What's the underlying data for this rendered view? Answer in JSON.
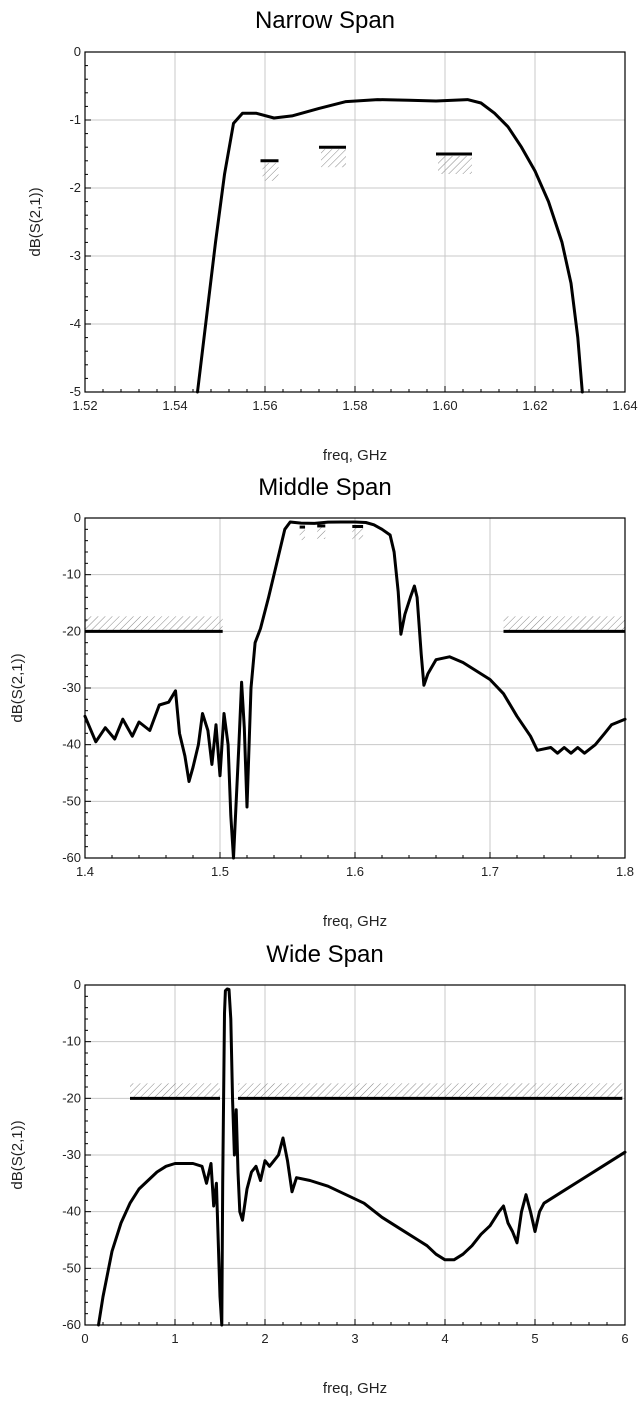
{
  "chart_data": [
    {
      "type": "line",
      "title": "Narrow Span",
      "xlabel": "freq, GHz",
      "ylabel": "dB(S(2,1))",
      "xlim": [
        1.52,
        1.64
      ],
      "ylim": [
        -5,
        0
      ],
      "xticks": [
        1.52,
        1.54,
        1.56,
        1.58,
        1.6,
        1.62,
        1.64
      ],
      "xtick_labels": [
        "1.52",
        "1.54",
        "1.56",
        "1.58",
        "1.60",
        "1.62",
        "1.64"
      ],
      "yticks": [
        0,
        -1,
        -2,
        -3,
        -4,
        -5
      ],
      "ytick_labels": [
        "0",
        "-1",
        "-2",
        "-3",
        "-4",
        "-5"
      ],
      "grid": true,
      "series": [
        {
          "points": [
            [
              1.545,
              -5.0
            ],
            [
              1.547,
              -3.9
            ],
            [
              1.549,
              -2.8
            ],
            [
              1.551,
              -1.8
            ],
            [
              1.553,
              -1.05
            ],
            [
              1.555,
              -0.9
            ],
            [
              1.558,
              -0.9
            ],
            [
              1.562,
              -0.97
            ],
            [
              1.566,
              -0.94
            ],
            [
              1.572,
              -0.83
            ],
            [
              1.578,
              -0.73
            ],
            [
              1.585,
              -0.7
            ],
            [
              1.592,
              -0.71
            ],
            [
              1.598,
              -0.72
            ],
            [
              1.605,
              -0.7
            ],
            [
              1.608,
              -0.75
            ],
            [
              1.611,
              -0.9
            ],
            [
              1.614,
              -1.1
            ],
            [
              1.617,
              -1.4
            ],
            [
              1.62,
              -1.75
            ],
            [
              1.623,
              -2.2
            ],
            [
              1.626,
              -2.8
            ],
            [
              1.628,
              -3.4
            ],
            [
              1.6295,
              -4.2
            ],
            [
              1.6305,
              -5.0
            ]
          ]
        }
      ],
      "mask_lines": [
        {
          "x": [
            1.559,
            1.563
          ],
          "y": -1.6
        },
        {
          "x": [
            1.572,
            1.578
          ],
          "y": -1.4
        },
        {
          "x": [
            1.598,
            1.606
          ],
          "y": -1.5
        }
      ]
    },
    {
      "type": "line",
      "title": "Middle Span",
      "xlabel": "freq, GHz",
      "ylabel": "dB(S(2,1))",
      "xlim": [
        1.4,
        1.8
      ],
      "ylim": [
        -60,
        0
      ],
      "xticks": [
        1.4,
        1.5,
        1.6,
        1.7,
        1.8
      ],
      "xtick_labels": [
        "1.4",
        "1.5",
        "1.6",
        "1.7",
        "1.8"
      ],
      "yticks": [
        0,
        -10,
        -20,
        -30,
        -40,
        -50,
        -60
      ],
      "ytick_labels": [
        "0",
        "-10",
        "-20",
        "-30",
        "-40",
        "-50",
        "-60"
      ],
      "grid": true,
      "series": [
        {
          "points": [
            [
              1.4,
              -35.0
            ],
            [
              1.408,
              -39.5
            ],
            [
              1.415,
              -37.0
            ],
            [
              1.422,
              -39.0
            ],
            [
              1.428,
              -35.5
            ],
            [
              1.435,
              -38.5
            ],
            [
              1.44,
              -36.0
            ],
            [
              1.448,
              -37.5
            ],
            [
              1.455,
              -33.0
            ],
            [
              1.462,
              -32.5
            ],
            [
              1.467,
              -30.5
            ],
            [
              1.47,
              -38.0
            ],
            [
              1.474,
              -42.0
            ],
            [
              1.477,
              -46.5
            ],
            [
              1.48,
              -44.0
            ],
            [
              1.484,
              -40.0
            ],
            [
              1.487,
              -34.5
            ],
            [
              1.491,
              -37.5
            ],
            [
              1.494,
              -43.5
            ],
            [
              1.497,
              -36.5
            ],
            [
              1.5,
              -45.5
            ],
            [
              1.503,
              -34.5
            ],
            [
              1.506,
              -40.0
            ],
            [
              1.508,
              -52.5
            ],
            [
              1.51,
              -60.0
            ],
            [
              1.512,
              -50.0
            ],
            [
              1.514,
              -40.0
            ],
            [
              1.516,
              -29.0
            ],
            [
              1.518,
              -37.0
            ],
            [
              1.52,
              -51.0
            ],
            [
              1.523,
              -30.0
            ],
            [
              1.526,
              -22.0
            ],
            [
              1.53,
              -19.5
            ],
            [
              1.536,
              -14.0
            ],
            [
              1.542,
              -8.0
            ],
            [
              1.548,
              -2.0
            ],
            [
              1.552,
              -0.7
            ],
            [
              1.56,
              -0.9
            ],
            [
              1.57,
              -0.95
            ],
            [
              1.58,
              -0.73
            ],
            [
              1.59,
              -0.7
            ],
            [
              1.6,
              -0.71
            ],
            [
              1.608,
              -0.8
            ],
            [
              1.614,
              -1.2
            ],
            [
              1.62,
              -2.0
            ],
            [
              1.626,
              -3.0
            ],
            [
              1.629,
              -6.0
            ],
            [
              1.632,
              -13.0
            ],
            [
              1.634,
              -20.5
            ],
            [
              1.637,
              -17.0
            ],
            [
              1.641,
              -14.0
            ],
            [
              1.644,
              -12.0
            ],
            [
              1.646,
              -14.0
            ],
            [
              1.649,
              -24.0
            ],
            [
              1.651,
              -29.5
            ],
            [
              1.654,
              -27.5
            ],
            [
              1.66,
              -25.0
            ],
            [
              1.67,
              -24.5
            ],
            [
              1.68,
              -25.5
            ],
            [
              1.69,
              -27.0
            ],
            [
              1.7,
              -28.5
            ],
            [
              1.71,
              -31.0
            ],
            [
              1.72,
              -35.0
            ],
            [
              1.73,
              -38.5
            ],
            [
              1.735,
              -41.0
            ],
            [
              1.745,
              -40.5
            ],
            [
              1.75,
              -41.5
            ],
            [
              1.755,
              -40.5
            ],
            [
              1.76,
              -41.5
            ],
            [
              1.765,
              -40.5
            ],
            [
              1.77,
              -41.5
            ],
            [
              1.778,
              -40.0
            ],
            [
              1.785,
              -38.0
            ],
            [
              1.79,
              -36.5
            ],
            [
              1.8,
              -35.5
            ]
          ]
        }
      ],
      "mask_lines": [
        {
          "x": [
            1.4,
            1.502
          ],
          "y": -20
        },
        {
          "x": [
            1.71,
            1.8
          ],
          "y": -20
        },
        {
          "x": [
            1.559,
            1.563
          ],
          "y": -1.6
        },
        {
          "x": [
            1.572,
            1.578
          ],
          "y": -1.4
        },
        {
          "x": [
            1.598,
            1.606
          ],
          "y": -1.5
        }
      ]
    },
    {
      "type": "line",
      "title": "Wide Span",
      "xlabel": "freq, GHz",
      "ylabel": "dB(S(2,1))",
      "xlim": [
        0,
        6
      ],
      "ylim": [
        -60,
        0
      ],
      "xticks": [
        0,
        1,
        2,
        3,
        4,
        5,
        6
      ],
      "xtick_labels": [
        "0",
        "1",
        "2",
        "3",
        "4",
        "5",
        "6"
      ],
      "yticks": [
        0,
        -10,
        -20,
        -30,
        -40,
        -50,
        -60
      ],
      "ytick_labels": [
        "0",
        "-10",
        "-20",
        "-30",
        "-40",
        "-50",
        "-60"
      ],
      "grid": true,
      "series": [
        {
          "points": [
            [
              0.15,
              -60.0
            ],
            [
              0.2,
              -55.0
            ],
            [
              0.3,
              -47.0
            ],
            [
              0.4,
              -42.0
            ],
            [
              0.5,
              -38.5
            ],
            [
              0.6,
              -36.0
            ],
            [
              0.7,
              -34.5
            ],
            [
              0.8,
              -33.0
            ],
            [
              0.9,
              -32.0
            ],
            [
              1.0,
              -31.5
            ],
            [
              1.1,
              -31.5
            ],
            [
              1.2,
              -31.5
            ],
            [
              1.3,
              -32.0
            ],
            [
              1.35,
              -35.0
            ],
            [
              1.4,
              -31.5
            ],
            [
              1.43,
              -39.0
            ],
            [
              1.46,
              -35.0
            ],
            [
              1.48,
              -45.0
            ],
            [
              1.5,
              -55.0
            ],
            [
              1.52,
              -60.0
            ],
            [
              1.53,
              -35.0
            ],
            [
              1.54,
              -20.0
            ],
            [
              1.55,
              -5.0
            ],
            [
              1.56,
              -1.0
            ],
            [
              1.58,
              -0.7
            ],
            [
              1.6,
              -0.8
            ],
            [
              1.62,
              -6.0
            ],
            [
              1.64,
              -20.5
            ],
            [
              1.66,
              -30.0
            ],
            [
              1.68,
              -22.0
            ],
            [
              1.7,
              -33.0
            ],
            [
              1.72,
              -40.0
            ],
            [
              1.75,
              -41.5
            ],
            [
              1.8,
              -36.0
            ],
            [
              1.85,
              -33.0
            ],
            [
              1.9,
              -32.0
            ],
            [
              1.95,
              -34.5
            ],
            [
              2.0,
              -31.0
            ],
            [
              2.05,
              -32.0
            ],
            [
              2.1,
              -31.0
            ],
            [
              2.15,
              -30.0
            ],
            [
              2.2,
              -27.0
            ],
            [
              2.25,
              -31.0
            ],
            [
              2.3,
              -36.5
            ],
            [
              2.35,
              -34.0
            ],
            [
              2.5,
              -34.5
            ],
            [
              2.7,
              -35.5
            ],
            [
              2.9,
              -37.0
            ],
            [
              3.1,
              -38.5
            ],
            [
              3.3,
              -41.0
            ],
            [
              3.5,
              -43.0
            ],
            [
              3.7,
              -45.0
            ],
            [
              3.8,
              -46.0
            ],
            [
              3.9,
              -47.5
            ],
            [
              4.0,
              -48.5
            ],
            [
              4.1,
              -48.5
            ],
            [
              4.2,
              -47.5
            ],
            [
              4.3,
              -46.0
            ],
            [
              4.4,
              -44.0
            ],
            [
              4.5,
              -42.5
            ],
            [
              4.6,
              -40.0
            ],
            [
              4.65,
              -39.0
            ],
            [
              4.7,
              -42.0
            ],
            [
              4.75,
              -43.5
            ],
            [
              4.8,
              -45.5
            ],
            [
              4.85,
              -40.0
            ],
            [
              4.9,
              -37.0
            ],
            [
              4.95,
              -40.0
            ],
            [
              5.0,
              -43.5
            ],
            [
              5.05,
              -40.0
            ],
            [
              5.1,
              -38.5
            ],
            [
              5.3,
              -36.5
            ],
            [
              5.5,
              -34.5
            ],
            [
              5.7,
              -32.5
            ],
            [
              5.85,
              -31.0
            ],
            [
              6.0,
              -29.5
            ]
          ]
        }
      ],
      "mask_lines": [
        {
          "x": [
            0.5,
            1.5
          ],
          "y": -20
        },
        {
          "x": [
            1.7,
            5.97
          ],
          "y": -20
        }
      ]
    }
  ]
}
